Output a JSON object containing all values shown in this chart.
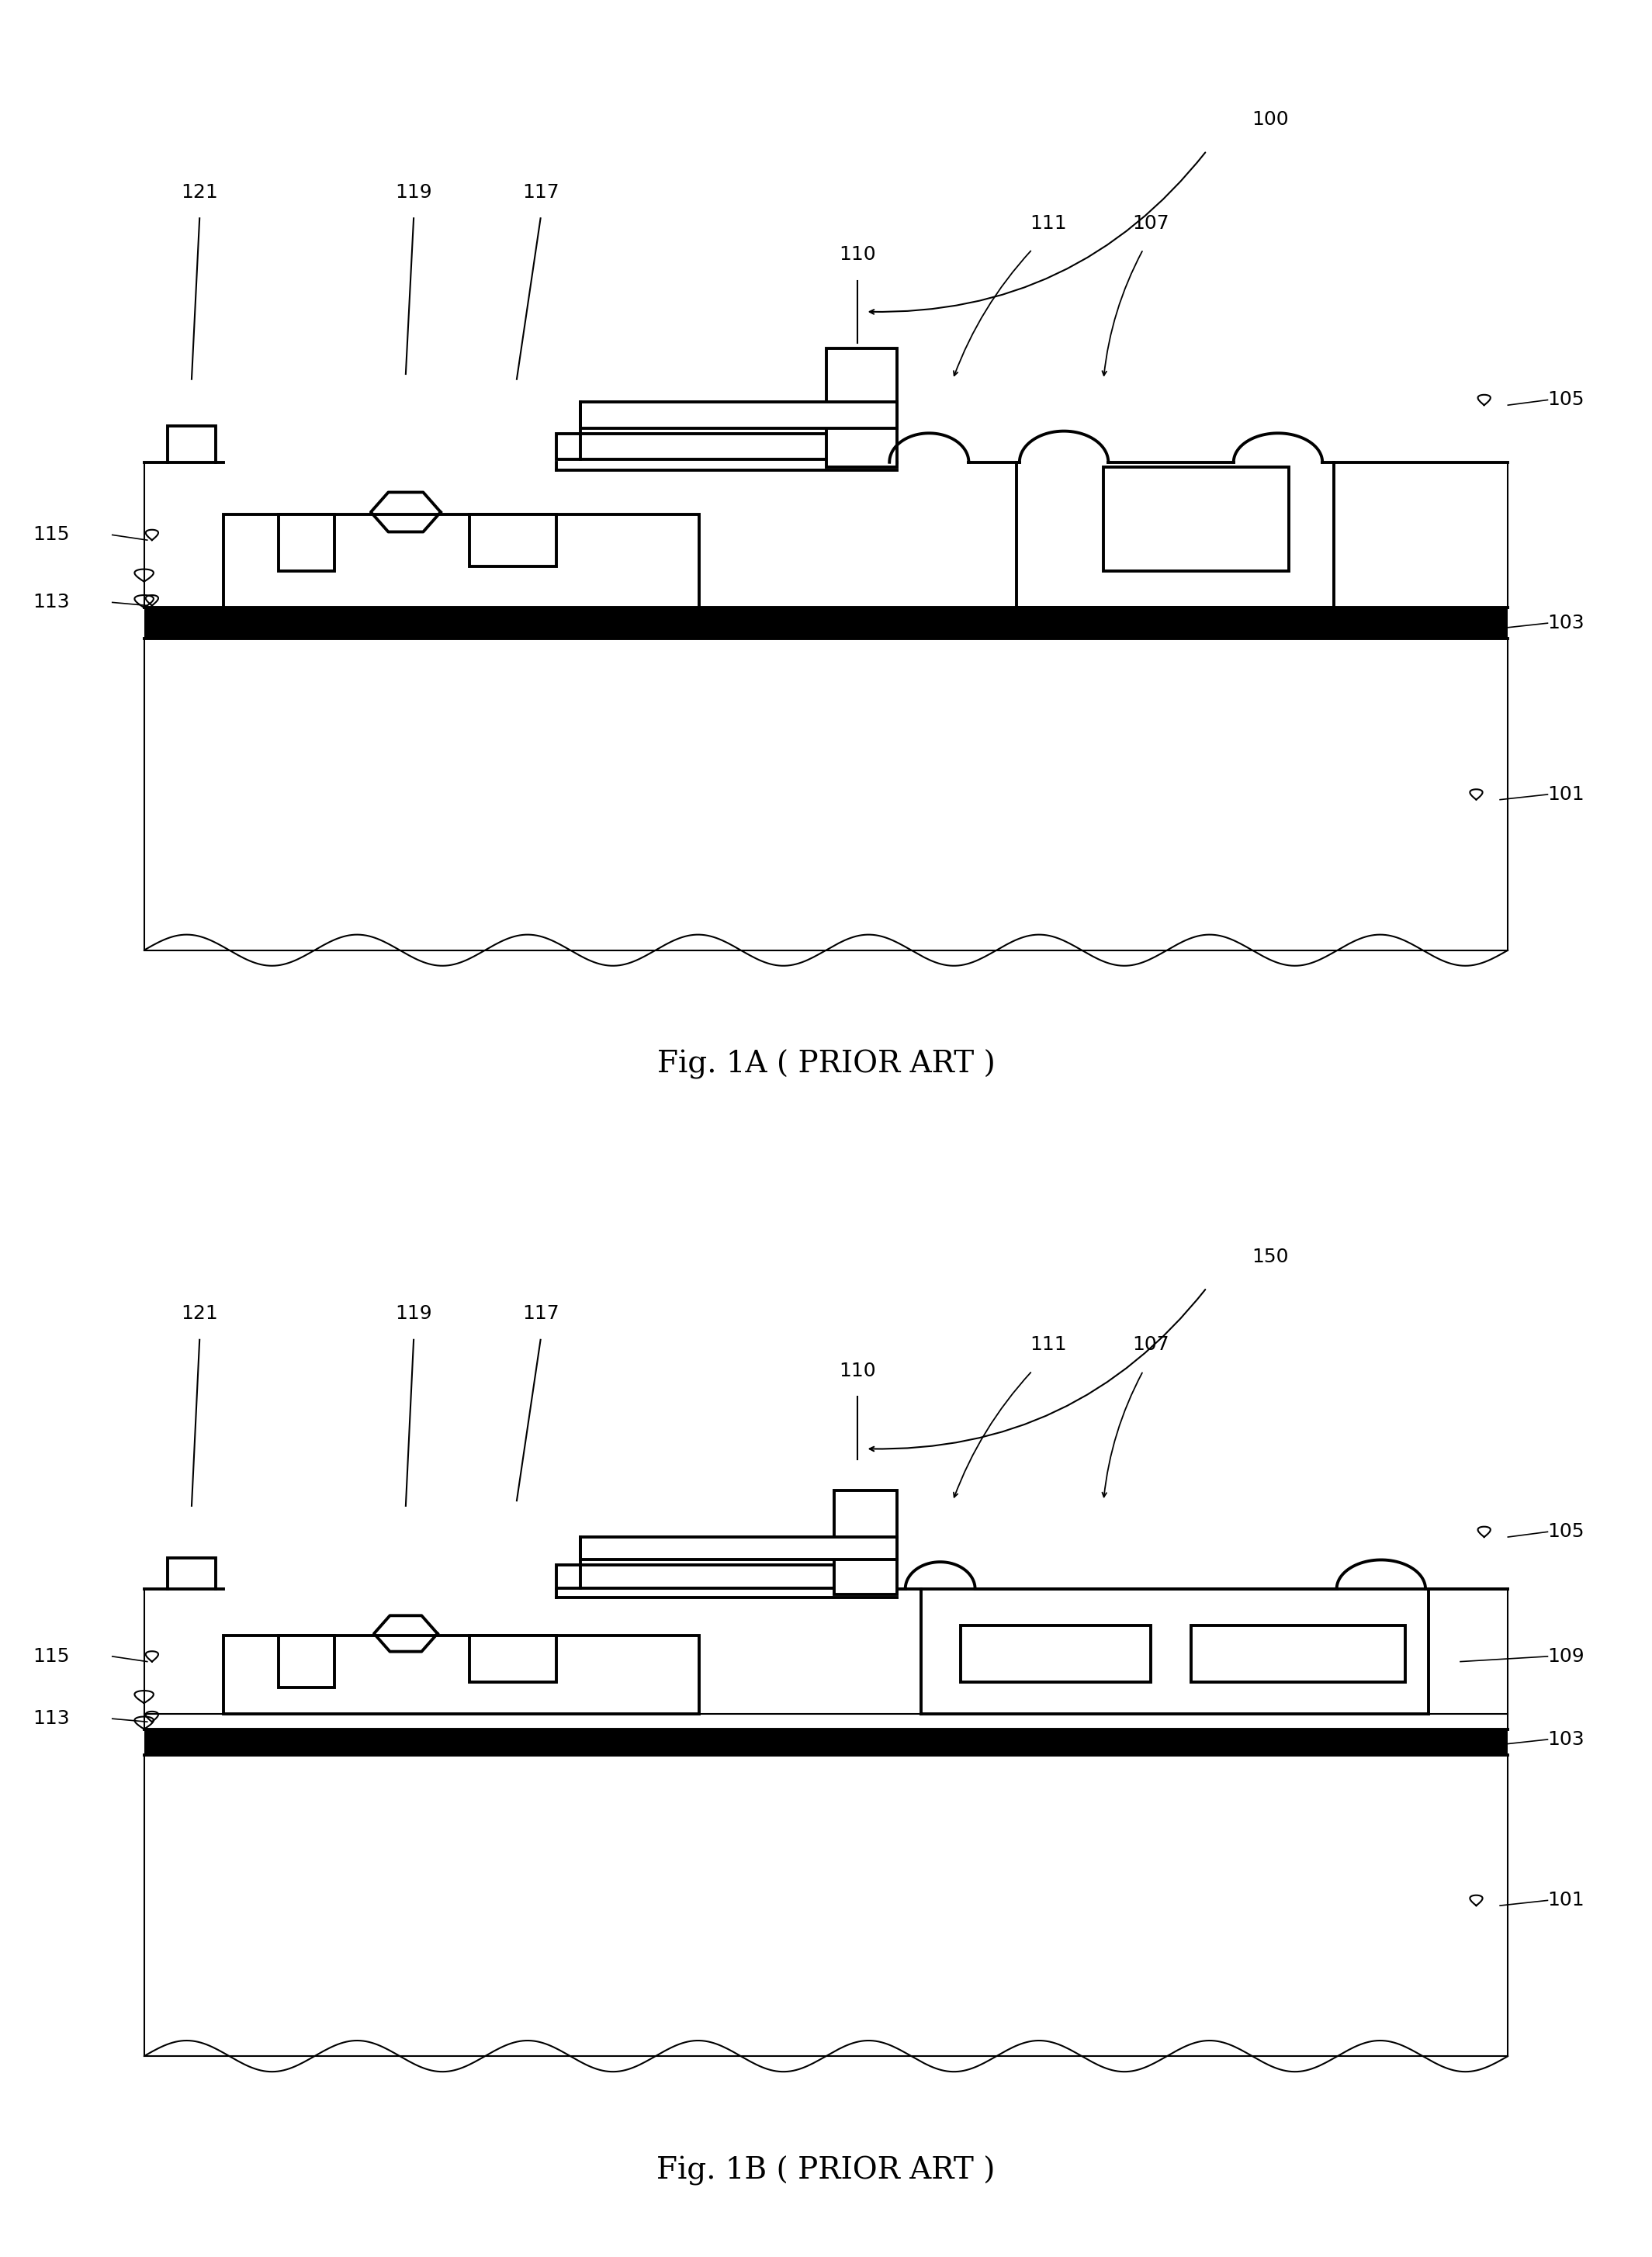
{
  "fig1A_label": "Fig. 1A ( PRIOR ART )",
  "fig1B_label": "Fig. 1B ( PRIOR ART )",
  "label_100": "100",
  "label_150": "150",
  "label_110": "110",
  "label_111": "111",
  "label_107": "107",
  "label_105": "105",
  "label_103": "103",
  "label_101": "101",
  "label_113": "113",
  "label_115": "115",
  "label_117": "117",
  "label_119": "119",
  "label_121": "121",
  "label_109": "109",
  "line_color": "#000000",
  "bg_color": "#ffffff",
  "lw_device": 2.8,
  "lw_thin": 1.5,
  "fontsize_label": 18,
  "fontsize_caption": 28
}
